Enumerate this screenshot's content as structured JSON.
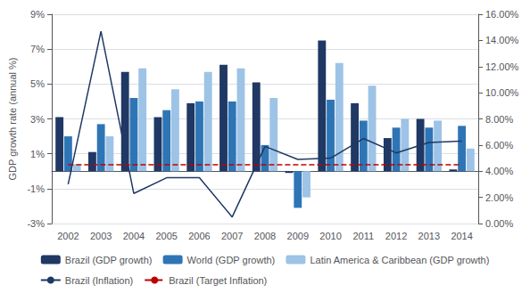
{
  "chart_data": {
    "type": "bar",
    "categories": [
      "2002",
      "2003",
      "2004",
      "2005",
      "2006",
      "2007",
      "2008",
      "2009",
      "2010",
      "2011",
      "2012",
      "2013",
      "2014"
    ],
    "ylabel": "GDP growth rate (annual %)",
    "ylim": [
      -3,
      9
    ],
    "yticks": [
      {
        "value": -3,
        "label": "-3%"
      },
      {
        "value": -1,
        "label": "-1%"
      },
      {
        "value": 1,
        "label": "1%"
      },
      {
        "value": 3,
        "label": "3%"
      },
      {
        "value": 5,
        "label": "5%"
      },
      {
        "value": 7,
        "label": "7%"
      },
      {
        "value": 9,
        "label": "9%"
      }
    ],
    "y2lim": [
      0.0,
      16.0
    ],
    "y2ticks": [
      {
        "value": 0.0,
        "label": "0.00%"
      },
      {
        "value": 2.0,
        "label": "2.00%"
      },
      {
        "value": 4.0,
        "label": "4.00%"
      },
      {
        "value": 6.0,
        "label": "6.00%"
      },
      {
        "value": 8.0,
        "label": "8.00%"
      },
      {
        "value": 10.0,
        "label": "10.00%"
      },
      {
        "value": 12.0,
        "label": "12.00%"
      },
      {
        "value": 14.0,
        "label": "14.00%"
      },
      {
        "value": 16.0,
        "label": "16.00%"
      }
    ],
    "grid": true,
    "legend": "bottom",
    "series": [
      {
        "name": "Brazil (GDP growth)",
        "type": "bar",
        "color": "#1f3864",
        "values": [
          3.1,
          1.1,
          5.7,
          3.1,
          3.9,
          6.1,
          5.1,
          -0.1,
          7.5,
          3.9,
          1.9,
          3.0,
          0.1
        ]
      },
      {
        "name": "World (GDP growth)",
        "type": "bar",
        "color": "#2e75b6",
        "values": [
          2.0,
          2.7,
          4.2,
          3.5,
          4.0,
          4.0,
          1.5,
          -2.1,
          4.1,
          2.9,
          2.5,
          2.5,
          2.6
        ]
      },
      {
        "name": "Latin America & Caribbean (GDP growth)",
        "type": "bar",
        "color": "#9dc3e6",
        "values": [
          0.4,
          2.0,
          5.9,
          4.7,
          5.7,
          5.9,
          4.2,
          -1.5,
          6.2,
          4.9,
          3.0,
          2.9,
          1.3
        ]
      },
      {
        "name": "Brazil (Inflation)",
        "type": "line",
        "axis": "y2",
        "color": "#1f3864",
        "line_style": "solid",
        "values": [
          3.0,
          14.7,
          2.3,
          3.5,
          3.5,
          0.5,
          5.9,
          4.9,
          5.0,
          6.5,
          5.4,
          6.2,
          6.3
        ]
      },
      {
        "name": "Brazil (Target Inflation)",
        "type": "line",
        "axis": "y2",
        "color": "#c00000",
        "line_style": "dashed",
        "values": [
          4.5,
          4.5,
          4.5,
          4.5,
          4.5,
          4.5,
          4.5,
          4.5,
          4.5,
          4.5,
          4.5,
          4.5,
          4.5
        ]
      }
    ]
  }
}
